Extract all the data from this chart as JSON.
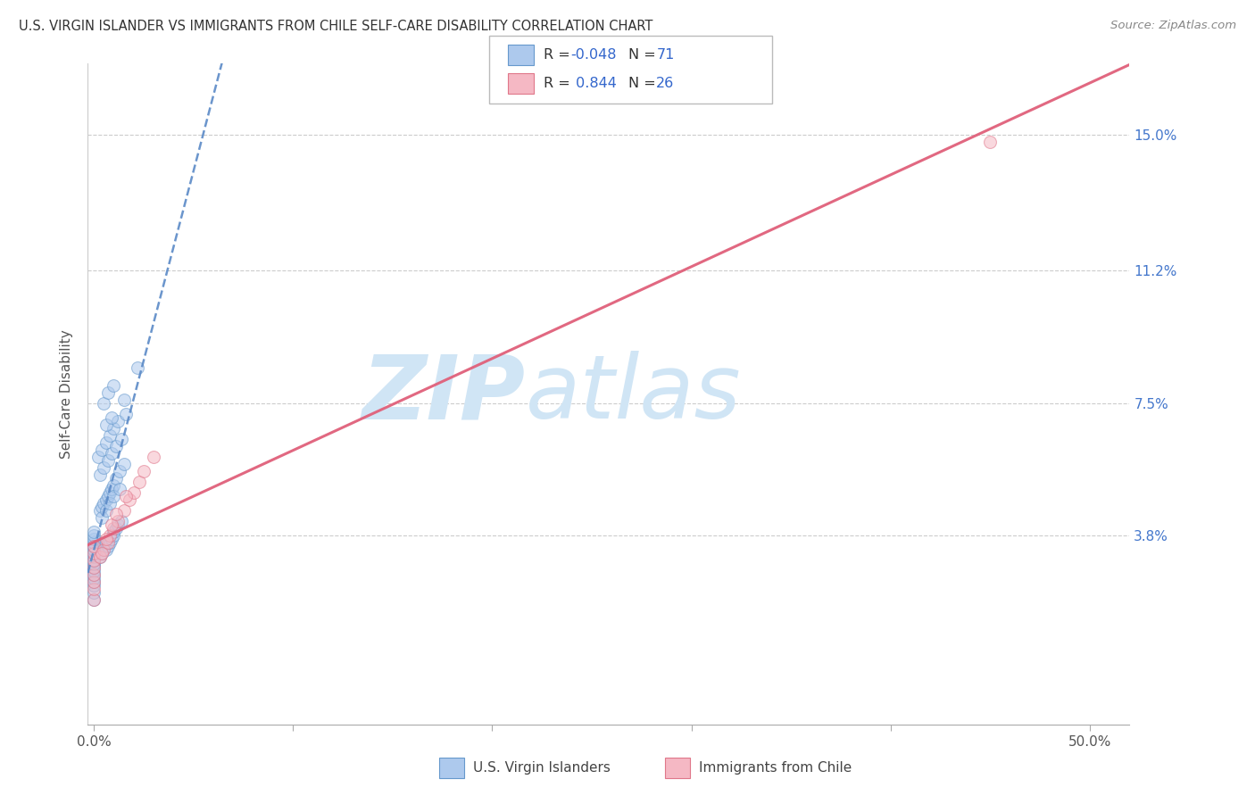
{
  "title": "U.S. VIRGIN ISLANDER VS IMMIGRANTS FROM CHILE SELF-CARE DISABILITY CORRELATION CHART",
  "source": "Source: ZipAtlas.com",
  "ylabel": "Self-Care Disability",
  "xlim_min": -0.3,
  "xlim_max": 52.0,
  "ylim_min": -1.5,
  "ylim_max": 17.0,
  "yticks": [
    0.0,
    3.8,
    7.5,
    11.2,
    15.0
  ],
  "ytick_labels_right": [
    "",
    "3.8%",
    "7.5%",
    "11.2%",
    "15.0%"
  ],
  "xticks": [
    0.0,
    10.0,
    20.0,
    30.0,
    40.0,
    50.0
  ],
  "xtick_labels": [
    "0.0%",
    "",
    "",
    "",
    "",
    "50.0%"
  ],
  "group1_name": "U.S. Virgin Islanders",
  "group1_color": "#adc9ed",
  "group1_edge": "#6699cc",
  "group1_R": -0.048,
  "group1_N": 71,
  "group1_line_color": "#5b8ac7",
  "group2_name": "Immigrants from Chile",
  "group2_color": "#f5b8c4",
  "group2_edge": "#e0778a",
  "group2_R": 0.844,
  "group2_N": 26,
  "group2_line_color": "#e0607a",
  "watermark_zip": "ZIP",
  "watermark_atlas": "atlas",
  "watermark_color": "#d0e5f5",
  "scatter_alpha": 0.55,
  "scatter_size": 100,
  "group1_x": [
    0.0,
    0.0,
    0.0,
    0.0,
    0.0,
    0.0,
    0.0,
    0.0,
    0.0,
    0.0,
    0.0,
    0.0,
    0.0,
    0.0,
    0.0,
    0.0,
    0.0,
    0.0,
    0.0,
    0.0,
    0.3,
    0.4,
    0.5,
    0.5,
    0.5,
    0.6,
    0.6,
    0.7,
    0.8,
    0.9,
    1.0,
    1.0,
    1.1,
    1.2,
    1.4,
    0.3,
    0.4,
    0.5,
    0.6,
    0.7,
    0.8,
    0.9,
    1.0,
    1.1,
    1.3,
    1.5,
    0.2,
    0.4,
    0.6,
    0.8,
    1.0,
    1.2,
    1.6,
    0.3,
    0.5,
    0.7,
    0.9,
    1.1,
    1.4,
    0.4,
    0.6,
    0.8,
    1.0,
    1.3,
    0.5,
    0.7,
    1.0,
    0.6,
    0.9,
    1.5,
    2.2
  ],
  "group1_y": [
    2.0,
    2.2,
    2.4,
    2.5,
    2.6,
    2.7,
    2.8,
    2.9,
    3.0,
    3.0,
    3.1,
    3.2,
    3.3,
    3.4,
    3.5,
    3.5,
    3.6,
    3.7,
    3.8,
    3.9,
    3.2,
    3.3,
    3.4,
    3.5,
    3.6,
    3.4,
    3.6,
    3.5,
    3.6,
    3.7,
    3.8,
    3.9,
    4.0,
    4.1,
    4.2,
    4.5,
    4.6,
    4.7,
    4.8,
    4.9,
    5.0,
    5.1,
    5.2,
    5.4,
    5.6,
    5.8,
    6.0,
    6.2,
    6.4,
    6.6,
    6.8,
    7.0,
    7.2,
    5.5,
    5.7,
    5.9,
    6.1,
    6.3,
    6.5,
    4.3,
    4.5,
    4.7,
    4.9,
    5.1,
    7.5,
    7.8,
    8.0,
    6.9,
    7.1,
    7.6,
    8.5
  ],
  "group2_x": [
    0.0,
    0.0,
    0.0,
    0.0,
    0.0,
    0.0,
    0.0,
    0.0,
    0.3,
    0.5,
    0.7,
    0.8,
    1.0,
    1.2,
    1.5,
    1.8,
    2.0,
    2.3,
    2.5,
    3.0,
    0.4,
    0.6,
    0.9,
    1.1,
    1.6,
    45.0
  ],
  "group2_y": [
    2.0,
    2.3,
    2.5,
    2.7,
    2.9,
    3.1,
    3.3,
    3.5,
    3.2,
    3.4,
    3.6,
    3.8,
    4.0,
    4.2,
    4.5,
    4.8,
    5.0,
    5.3,
    5.6,
    6.0,
    3.3,
    3.7,
    4.1,
    4.4,
    4.9,
    14.8
  ],
  "group1_line_x_start": -0.3,
  "group1_line_x_end": 52.0,
  "group2_line_x_start": -0.3,
  "group2_line_x_end": 52.0
}
